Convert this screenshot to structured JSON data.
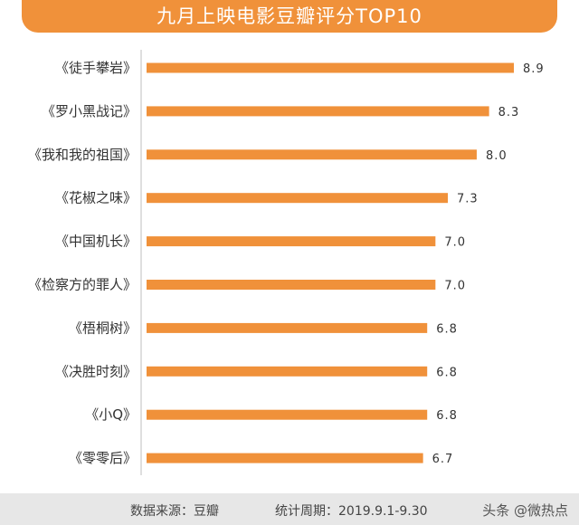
{
  "header": {
    "title": "九月上映电影豆瓣评分TOP10"
  },
  "chart_data": {
    "type": "bar",
    "orientation": "horizontal",
    "title": "九月上映电影豆瓣评分TOP10",
    "categories": [
      "《徒手攀岩》",
      "《罗小黑战记》",
      "《我和我的祖国》",
      "《花椒之味》",
      "《中国机长》",
      "《检察方的罪人》",
      "《梧桐树》",
      "《决胜时刻》",
      "《小Q》",
      "《零零后》"
    ],
    "values": [
      8.9,
      8.3,
      8.0,
      7.3,
      7.0,
      7.0,
      6.8,
      6.8,
      6.8,
      6.7
    ],
    "value_labels": [
      "8.9",
      "8.3",
      "8.0",
      "7.3",
      "7.0",
      "7.0",
      "6.8",
      "6.8",
      "6.8",
      "6.7"
    ],
    "xlim": [
      0,
      8.9
    ],
    "bar_color": "#f0913a",
    "grid": false,
    "legend": "none"
  },
  "footer": {
    "source": "数据来源：豆瓣",
    "period": "统计周期：2019.9.1-9.30",
    "watermark": "头条 @微热点"
  },
  "colors": {
    "accent": "#f0913a",
    "footer_bg": "#e7e7e7",
    "text": "#333333"
  }
}
